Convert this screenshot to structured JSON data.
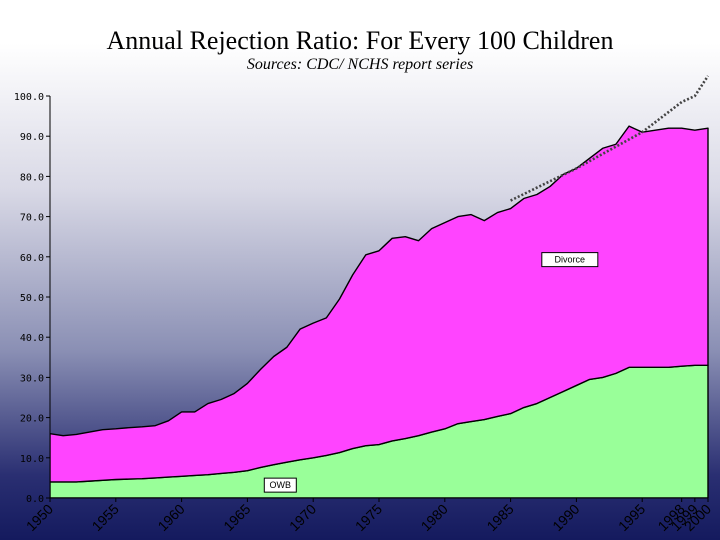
{
  "chart_data": {
    "type": "area",
    "stacked": true,
    "title": "Annual Rejection Ratio: For Every 100 Children",
    "subtitle": "Sources: CDC/ NCHS report series",
    "ylim": [
      0,
      100
    ],
    "yticks": [
      "0.0",
      "10.0",
      "20.0",
      "30.0",
      "40.0",
      "50.0",
      "60.0",
      "70.0",
      "80.0",
      "90.0",
      "100.0"
    ],
    "xlim": [
      1950,
      2000
    ],
    "xticks": [
      {
        "value": 1950,
        "label": "1950"
      },
      {
        "value": 1955,
        "label": "1955"
      },
      {
        "value": 1960,
        "label": "1960"
      },
      {
        "value": 1965,
        "label": "1965"
      },
      {
        "value": 1970,
        "label": "1970"
      },
      {
        "value": 1975,
        "label": "1975"
      },
      {
        "value": 1980,
        "label": "1980"
      },
      {
        "value": 1985,
        "label": "1985"
      },
      {
        "value": 1990,
        "label": "1990"
      },
      {
        "value": 1995,
        "label": "1995"
      },
      {
        "value": 1998,
        "label": "1998"
      },
      {
        "value": 1999,
        "label": "1999"
      },
      {
        "value": 2000,
        "label": "2000"
      }
    ],
    "x": [
      1950,
      1951,
      1952,
      1953,
      1954,
      1955,
      1956,
      1957,
      1958,
      1959,
      1960,
      1961,
      1962,
      1963,
      1964,
      1965,
      1966,
      1967,
      1968,
      1969,
      1970,
      1971,
      1972,
      1973,
      1974,
      1975,
      1976,
      1977,
      1978,
      1979,
      1980,
      1981,
      1982,
      1983,
      1984,
      1985,
      1986,
      1987,
      1988,
      1989,
      1990,
      1991,
      1992,
      1993,
      1994,
      1995,
      1996,
      1997,
      1998,
      1999,
      2000
    ],
    "series": [
      {
        "name": "OWB",
        "color": "#99ff99",
        "values": [
          4.0,
          4.0,
          4.0,
          4.2,
          4.4,
          4.6,
          4.7,
          4.8,
          5.0,
          5.2,
          5.4,
          5.6,
          5.8,
          6.1,
          6.4,
          6.8,
          7.6,
          8.3,
          8.9,
          9.5,
          10.0,
          10.6,
          11.3,
          12.3,
          13.0,
          13.3,
          14.2,
          14.8,
          15.5,
          16.4,
          17.2,
          18.5,
          19.0,
          19.5,
          20.3,
          21.0,
          22.5,
          23.5,
          25.0,
          26.5,
          28.0,
          29.5,
          30.0,
          31.0,
          32.5,
          32.5,
          32.5,
          32.5,
          32.8,
          33.0,
          33.0
        ]
      },
      {
        "name": "Divorce",
        "color": "#ff44ff",
        "values": [
          12.0,
          11.5,
          11.8,
          12.2,
          12.6,
          12.6,
          12.8,
          12.9,
          13.0,
          14.0,
          16.0,
          15.8,
          17.7,
          18.4,
          19.6,
          21.7,
          24.4,
          26.9,
          28.6,
          32.5,
          33.5,
          34.2,
          38.2,
          43.2,
          47.5,
          48.2,
          50.4,
          50.2,
          48.5,
          50.6,
          51.3,
          51.5,
          51.5,
          49.5,
          50.7,
          51.0,
          52.0,
          52.0,
          52.5,
          54.0,
          54.0,
          55.0,
          57.0,
          57.0,
          60.0,
          58.5,
          59.0,
          59.5,
          59.2,
          58.5,
          59.0
        ]
      }
    ],
    "trend": {
      "style": "dotted",
      "color": "#444444",
      "points": [
        [
          1985,
          74.0
        ],
        [
          1990,
          82.0
        ],
        [
          1995,
          91.0
        ],
        [
          1998,
          98.5
        ],
        [
          1999,
          100.0
        ],
        [
          2000,
          105.0
        ]
      ]
    },
    "labels": [
      {
        "series": "Divorce",
        "text": "Divorce",
        "x": 1989.5,
        "y": 59.3
      },
      {
        "series": "OWB",
        "text": "OWB",
        "x": 1967.5,
        "y": 3.2
      }
    ]
  }
}
